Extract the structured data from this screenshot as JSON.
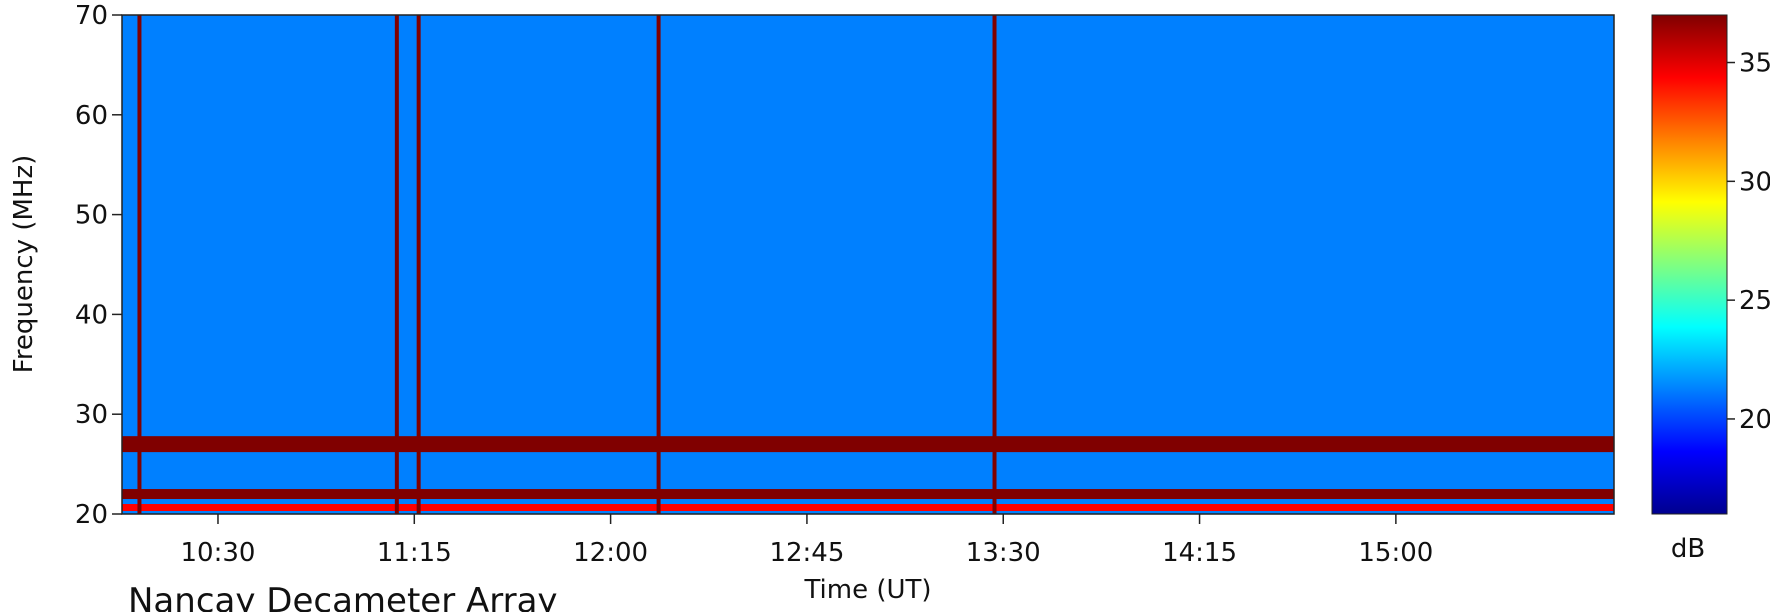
{
  "chart_data": {
    "type": "heatmap",
    "title": "",
    "xlabel": "Time (UT)",
    "ylabel": "Frequency (MHz)",
    "xlim": [
      "10:08",
      "15:50"
    ],
    "ylim": [
      20,
      70
    ],
    "x_ticks": [
      "10:30",
      "11:15",
      "12:00",
      "12:45",
      "13:30",
      "14:15",
      "15:00"
    ],
    "y_ticks": [
      20,
      30,
      40,
      50,
      60,
      70
    ],
    "colorbar": {
      "label": "dB",
      "ticks": [
        20,
        25,
        30,
        35
      ],
      "range": [
        16,
        37
      ],
      "colormap": [
        "#00008f",
        "#0000ff",
        "#0080ff",
        "#00ffff",
        "#80ff80",
        "#ffff00",
        "#ff8000",
        "#ff0000",
        "#800000"
      ]
    },
    "features": {
      "broadband_bursts_ut": [
        "10:12",
        "11:11",
        "11:16",
        "12:11",
        "13:28"
      ],
      "hot_interference_bands_mhz": [
        {
          "range": [
            26.2,
            27.8
          ],
          "level_db": 36
        },
        {
          "range": [
            21.5,
            22.5
          ],
          "level_db": 36
        },
        {
          "range": [
            20.3,
            21.0
          ],
          "level_db": 35
        }
      ],
      "background_level_db": 20
    }
  },
  "footer": {
    "instrument": "Nancay Decameter Array"
  }
}
